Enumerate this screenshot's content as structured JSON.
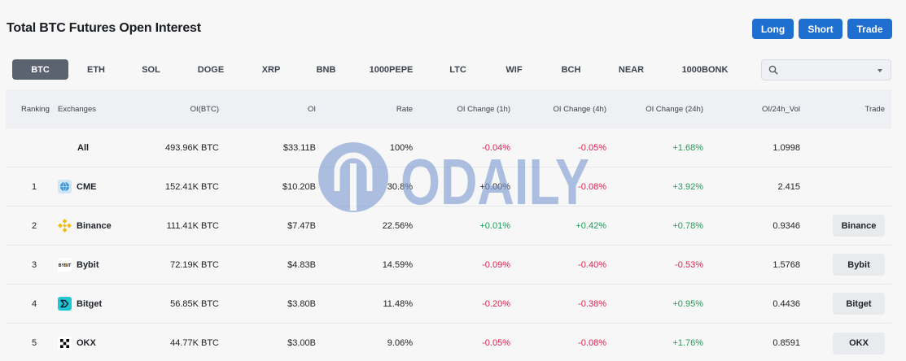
{
  "page": {
    "title": "Total BTC Futures Open Interest"
  },
  "actions": {
    "long": "Long",
    "short": "Short",
    "trade": "Trade"
  },
  "tabs": [
    "BTC",
    "ETH",
    "SOL",
    "DOGE",
    "XRP",
    "BNB",
    "1000PEPE",
    "LTC",
    "WIF",
    "BCH",
    "NEAR",
    "1000BONK"
  ],
  "active_tab": "BTC",
  "search": {
    "value": "",
    "icon": "search-icon"
  },
  "table": {
    "headers": {
      "ranking": "Ranking",
      "exchanges": "Exchanges",
      "oi_btc": "OI(BTC)",
      "oi": "OI",
      "rate": "Rate",
      "oi_change_1h": "OI Change (1h)",
      "oi_change_4h": "OI Change (4h)",
      "oi_change_24h": "OI Change (24h)",
      "oi_vol": "OI/24h_Vol",
      "trade": "Trade"
    },
    "rows": [
      {
        "rank": "",
        "exchange": "All",
        "oi_btc": "493.96K BTC",
        "oi": "$33.11B",
        "rate": "100%",
        "ch1h": "-0.04%",
        "ch4h": "-0.05%",
        "ch24h": "+1.68%",
        "vol": "1.0998",
        "trade": ""
      },
      {
        "rank": "1",
        "exchange": "CME",
        "oi_btc": "152.41K BTC",
        "oi": "$10.20B",
        "rate": "30.8%",
        "ch1h": "+0.00%",
        "ch4h": "-0.08%",
        "ch24h": "+3.92%",
        "vol": "2.415",
        "trade": ""
      },
      {
        "rank": "2",
        "exchange": "Binance",
        "oi_btc": "111.41K BTC",
        "oi": "$7.47B",
        "rate": "22.56%",
        "ch1h": "+0.01%",
        "ch4h": "+0.42%",
        "ch24h": "+0.78%",
        "vol": "0.9346",
        "trade": "Binance"
      },
      {
        "rank": "3",
        "exchange": "Bybit",
        "oi_btc": "72.19K BTC",
        "oi": "$4.83B",
        "rate": "14.59%",
        "ch1h": "-0.09%",
        "ch4h": "-0.40%",
        "ch24h": "-0.53%",
        "vol": "1.5768",
        "trade": "Bybit"
      },
      {
        "rank": "4",
        "exchange": "Bitget",
        "oi_btc": "56.85K BTC",
        "oi": "$3.80B",
        "rate": "11.48%",
        "ch1h": "-0.20%",
        "ch4h": "-0.38%",
        "ch24h": "+0.95%",
        "vol": "0.4436",
        "trade": "Bitget"
      },
      {
        "rank": "5",
        "exchange": "OKX",
        "oi_btc": "44.77K BTC",
        "oi": "$3.00B",
        "rate": "9.06%",
        "ch1h": "-0.05%",
        "ch4h": "-0.08%",
        "ch24h": "+1.76%",
        "vol": "0.8591",
        "trade": "OKX"
      }
    ]
  },
  "watermark": {
    "text": "ODAILY"
  },
  "colors": {
    "accent": "#1f6fd0",
    "negative": "#dc2450",
    "positive": "#1f9e58",
    "active_tab": "#5b6270"
  }
}
